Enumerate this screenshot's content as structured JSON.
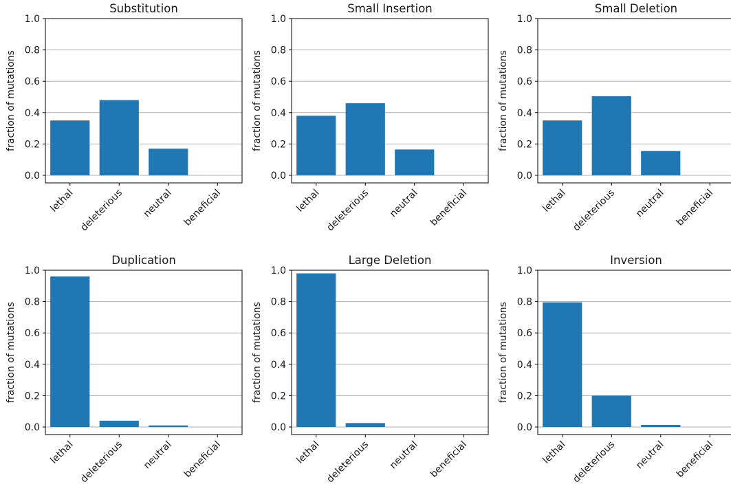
{
  "chart_data": [
    {
      "type": "bar",
      "title": "Substitution",
      "ylabel": "fraction of mutations",
      "categories": [
        "lethal",
        "deleterious",
        "neutral",
        "beneficial"
      ],
      "values": [
        0.35,
        0.48,
        0.17,
        0.0
      ],
      "ylim": [
        0,
        1.0
      ],
      "yticks": [
        "0.0",
        "0.2",
        "0.4",
        "0.6",
        "0.8",
        "1.0"
      ],
      "grid": "y",
      "color": "#1f77b4"
    },
    {
      "type": "bar",
      "title": "Small Insertion",
      "ylabel": "fraction of mutations",
      "categories": [
        "lethal",
        "deleterious",
        "neutral",
        "beneficial"
      ],
      "values": [
        0.38,
        0.46,
        0.165,
        0.0
      ],
      "ylim": [
        0,
        1.0
      ],
      "yticks": [
        "0.0",
        "0.2",
        "0.4",
        "0.6",
        "0.8",
        "1.0"
      ],
      "grid": "y",
      "color": "#1f77b4"
    },
    {
      "type": "bar",
      "title": "Small Deletion",
      "ylabel": "fraction of mutations",
      "categories": [
        "lethal",
        "deleterious",
        "neutral",
        "beneficial"
      ],
      "values": [
        0.35,
        0.505,
        0.155,
        0.0
      ],
      "ylim": [
        0,
        1.0
      ],
      "yticks": [
        "0.0",
        "0.2",
        "0.4",
        "0.6",
        "0.8",
        "1.0"
      ],
      "grid": "y",
      "color": "#1f77b4"
    },
    {
      "type": "bar",
      "title": "Duplication",
      "ylabel": "fraction of mutations",
      "categories": [
        "lethal",
        "deleterious",
        "neutral",
        "beneficial"
      ],
      "values": [
        0.96,
        0.04,
        0.01,
        0.0
      ],
      "ylim": [
        0,
        1.0
      ],
      "yticks": [
        "0.0",
        "0.2",
        "0.4",
        "0.6",
        "0.8",
        "1.0"
      ],
      "grid": "y",
      "color": "#1f77b4"
    },
    {
      "type": "bar",
      "title": "Large Deletion",
      "ylabel": "fraction of mutations",
      "categories": [
        "lethal",
        "deleterious",
        "neutral",
        "beneficial"
      ],
      "values": [
        0.98,
        0.025,
        0.0,
        0.0
      ],
      "ylim": [
        0,
        1.0
      ],
      "yticks": [
        "0.0",
        "0.2",
        "0.4",
        "0.6",
        "0.8",
        "1.0"
      ],
      "grid": "y",
      "color": "#1f77b4"
    },
    {
      "type": "bar",
      "title": "Inversion",
      "ylabel": "fraction of mutations",
      "categories": [
        "lethal",
        "deleterious",
        "neutral",
        "beneficial"
      ],
      "values": [
        0.795,
        0.2,
        0.013,
        0.0
      ],
      "ylim": [
        0,
        1.0
      ],
      "yticks": [
        "0.0",
        "0.2",
        "0.4",
        "0.6",
        "0.8",
        "1.0"
      ],
      "grid": "y",
      "color": "#1f77b4"
    }
  ]
}
